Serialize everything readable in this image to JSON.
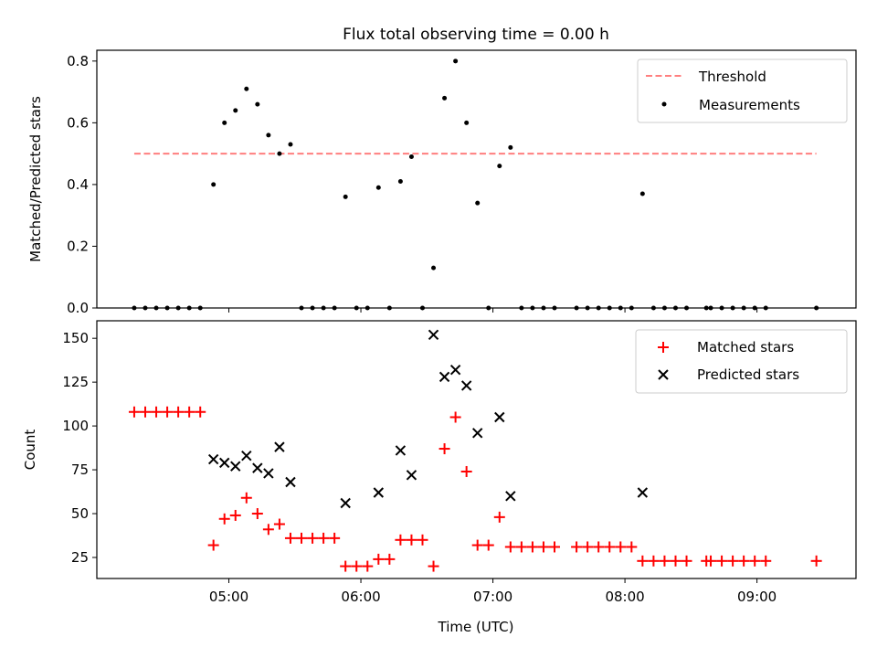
{
  "chart_data": [
    {
      "type": "scatter",
      "title": "Flux total observing time = 0.00 h",
      "xlabel": "",
      "ylabel": "Matched/Predicted stars",
      "ylim": [
        0.0,
        0.835
      ],
      "yticks": [
        "0.0",
        "0.2",
        "0.4",
        "0.6",
        "0.8"
      ],
      "xlim": [
        "04:00",
        "09:45"
      ],
      "grid": false,
      "legend_position": "top-right",
      "threshold": {
        "name": "Threshold",
        "y": 0.5,
        "x": [
          "04:17",
          "09:27"
        ],
        "color": "#ff7f7f",
        "style": "dashed"
      },
      "series": [
        {
          "name": "Measurements",
          "marker": "dot",
          "color": "#000000",
          "points": [
            [
              "04:17",
              0
            ],
            [
              "04:22",
              0
            ],
            [
              "04:27",
              0
            ],
            [
              "04:32",
              0
            ],
            [
              "04:37",
              0
            ],
            [
              "04:42",
              0
            ],
            [
              "04:47",
              0
            ],
            [
              "04:53",
              0.4
            ],
            [
              "04:58",
              0.6
            ],
            [
              "05:03",
              0.64
            ],
            [
              "05:08",
              0.71
            ],
            [
              "05:13",
              0.66
            ],
            [
              "05:18",
              0.56
            ],
            [
              "05:23",
              0.5
            ],
            [
              "05:28",
              0.53
            ],
            [
              "05:33",
              0
            ],
            [
              "05:38",
              0
            ],
            [
              "05:43",
              0
            ],
            [
              "05:48",
              0
            ],
            [
              "05:53",
              0.36
            ],
            [
              "05:58",
              0
            ],
            [
              "06:03",
              0
            ],
            [
              "06:08",
              0.39
            ],
            [
              "06:13",
              0
            ],
            [
              "06:18",
              0.41
            ],
            [
              "06:23",
              0.49
            ],
            [
              "06:28",
              0
            ],
            [
              "06:33",
              0.13
            ],
            [
              "06:38",
              0.68
            ],
            [
              "06:43",
              0.8
            ],
            [
              "06:48",
              0.6
            ],
            [
              "06:53",
              0.34
            ],
            [
              "06:58",
              0
            ],
            [
              "07:03",
              0.46
            ],
            [
              "07:08",
              0.52
            ],
            [
              "07:13",
              0
            ],
            [
              "07:18",
              0
            ],
            [
              "07:23",
              0
            ],
            [
              "07:28",
              0
            ],
            [
              "07:38",
              0
            ],
            [
              "07:43",
              0
            ],
            [
              "07:48",
              0
            ],
            [
              "07:53",
              0
            ],
            [
              "07:58",
              0
            ],
            [
              "08:03",
              0
            ],
            [
              "08:08",
              0.37
            ],
            [
              "08:13",
              0
            ],
            [
              "08:18",
              0
            ],
            [
              "08:23",
              0
            ],
            [
              "08:28",
              0
            ],
            [
              "08:37",
              0
            ],
            [
              "08:39",
              0
            ],
            [
              "08:44",
              0
            ],
            [
              "08:49",
              0
            ],
            [
              "08:54",
              0
            ],
            [
              "08:59",
              0
            ],
            [
              "09:04",
              0
            ],
            [
              "09:27",
              0
            ]
          ]
        }
      ]
    },
    {
      "type": "scatter",
      "title": "",
      "xlabel": "Time (UTC)",
      "ylabel": "Count",
      "ylim": [
        13,
        160
      ],
      "yticks": [
        "25",
        "50",
        "75",
        "100",
        "125",
        "150"
      ],
      "xlim": [
        "04:00",
        "09:45"
      ],
      "xticks": [
        "05:00",
        "06:00",
        "07:00",
        "08:00",
        "09:00"
      ],
      "grid": false,
      "legend_position": "top-right",
      "series": [
        {
          "name": "Matched stars",
          "marker": "plus",
          "color": "#ff0000",
          "points": [
            [
              "04:17",
              108
            ],
            [
              "04:22",
              108
            ],
            [
              "04:27",
              108
            ],
            [
              "04:32",
              108
            ],
            [
              "04:37",
              108
            ],
            [
              "04:42",
              108
            ],
            [
              "04:47",
              108
            ],
            [
              "04:53",
              32
            ],
            [
              "04:58",
              47
            ],
            [
              "05:03",
              49
            ],
            [
              "05:08",
              59
            ],
            [
              "05:13",
              50
            ],
            [
              "05:18",
              41
            ],
            [
              "05:23",
              44
            ],
            [
              "05:28",
              36
            ],
            [
              "05:33",
              36
            ],
            [
              "05:38",
              36
            ],
            [
              "05:43",
              36
            ],
            [
              "05:48",
              36
            ],
            [
              "05:53",
              20
            ],
            [
              "05:58",
              20
            ],
            [
              "06:03",
              20
            ],
            [
              "06:08",
              24
            ],
            [
              "06:13",
              24
            ],
            [
              "06:18",
              35
            ],
            [
              "06:23",
              35
            ],
            [
              "06:28",
              35
            ],
            [
              "06:33",
              20
            ],
            [
              "06:38",
              87
            ],
            [
              "06:43",
              105
            ],
            [
              "06:48",
              74
            ],
            [
              "06:53",
              32
            ],
            [
              "06:58",
              32
            ],
            [
              "07:03",
              48
            ],
            [
              "07:08",
              31
            ],
            [
              "07:13",
              31
            ],
            [
              "07:18",
              31
            ],
            [
              "07:23",
              31
            ],
            [
              "07:28",
              31
            ],
            [
              "07:38",
              31
            ],
            [
              "07:43",
              31
            ],
            [
              "07:48",
              31
            ],
            [
              "07:53",
              31
            ],
            [
              "07:58",
              31
            ],
            [
              "08:03",
              31
            ],
            [
              "08:08",
              23
            ],
            [
              "08:13",
              23
            ],
            [
              "08:18",
              23
            ],
            [
              "08:23",
              23
            ],
            [
              "08:28",
              23
            ],
            [
              "08:37",
              23
            ],
            [
              "08:39",
              23
            ],
            [
              "08:44",
              23
            ],
            [
              "08:49",
              23
            ],
            [
              "08:54",
              23
            ],
            [
              "08:59",
              23
            ],
            [
              "09:04",
              23
            ],
            [
              "09:27",
              23
            ]
          ]
        },
        {
          "name": "Predicted stars",
          "marker": "x",
          "color": "#000000",
          "points": [
            [
              "04:53",
              81
            ],
            [
              "04:58",
              79
            ],
            [
              "05:03",
              77
            ],
            [
              "05:08",
              83
            ],
            [
              "05:13",
              76
            ],
            [
              "05:18",
              73
            ],
            [
              "05:23",
              88
            ],
            [
              "05:28",
              68
            ],
            [
              "05:53",
              56
            ],
            [
              "06:08",
              62
            ],
            [
              "06:18",
              86
            ],
            [
              "06:23",
              72
            ],
            [
              "06:33",
              152
            ],
            [
              "06:38",
              128
            ],
            [
              "06:43",
              132
            ],
            [
              "06:48",
              123
            ],
            [
              "06:53",
              96
            ],
            [
              "07:03",
              105
            ],
            [
              "07:08",
              60
            ],
            [
              "08:08",
              62
            ]
          ]
        }
      ]
    }
  ]
}
